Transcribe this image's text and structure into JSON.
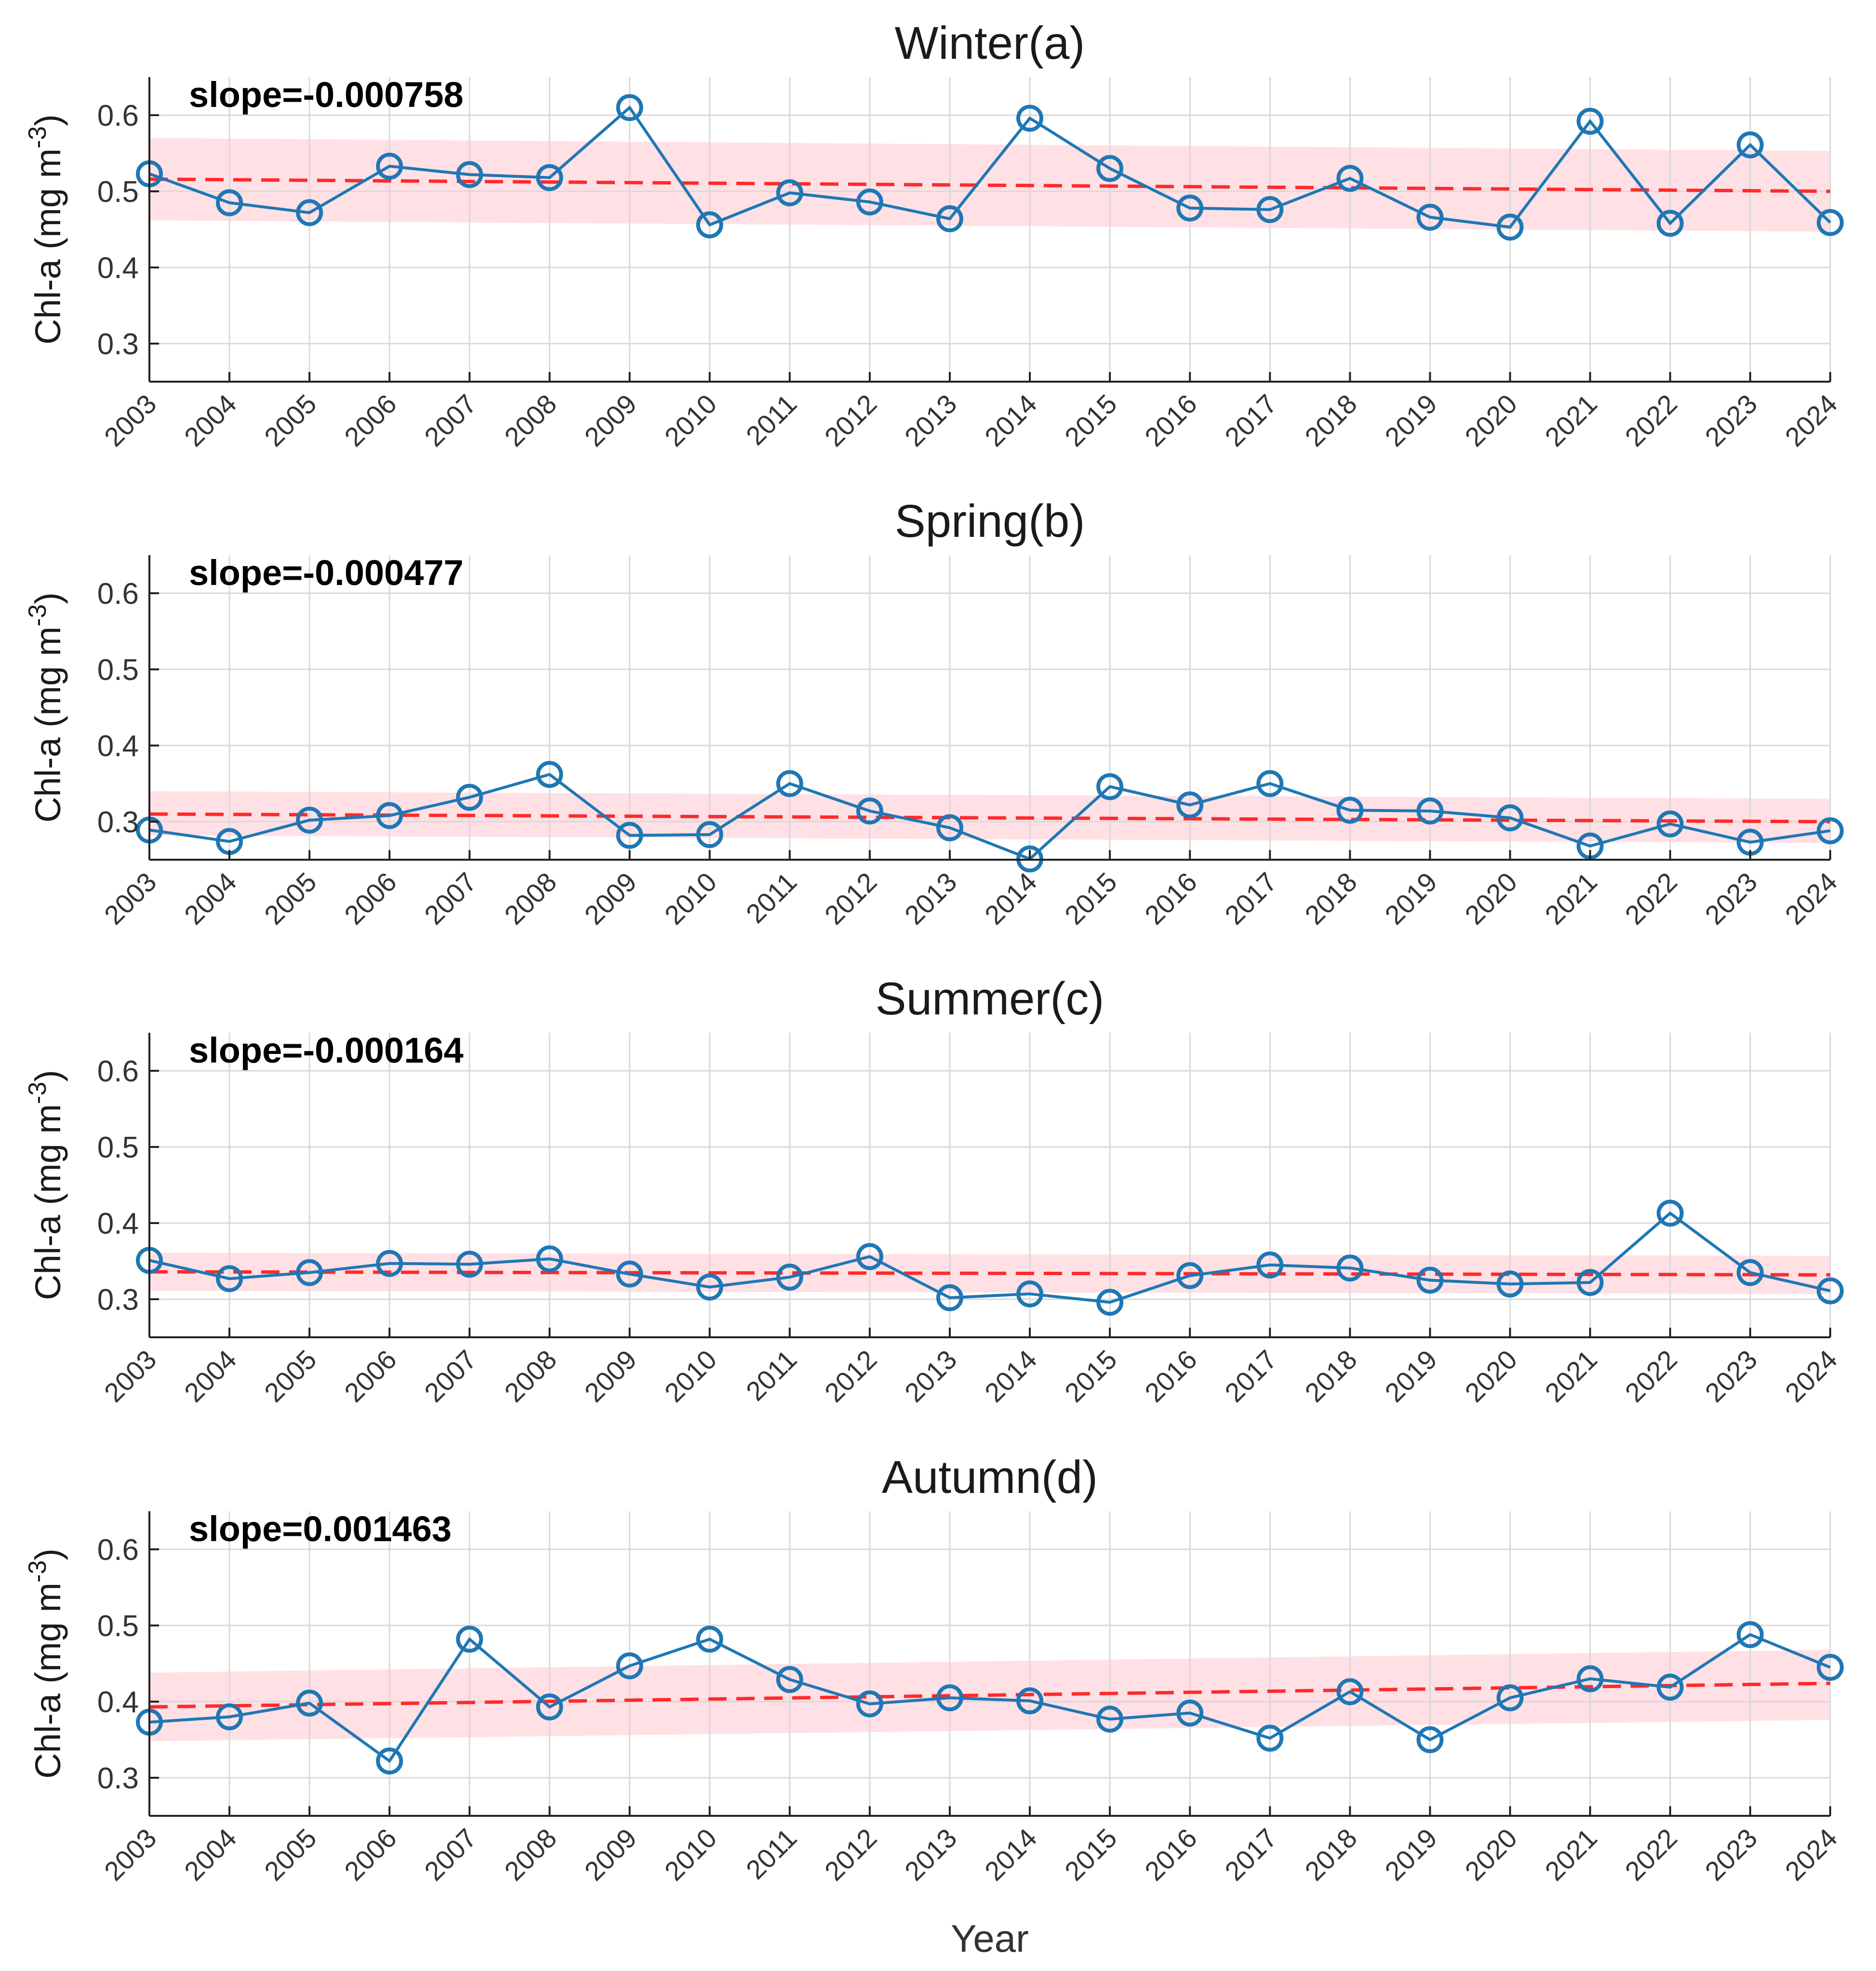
{
  "figure": {
    "xlabel": "Year"
  },
  "chart_data": [
    {
      "type": "line",
      "title": "Winter(a)",
      "annotation": "slope=-0.000758",
      "xlabel": "",
      "ylabel": "Chl-a (mg m",
      "ylabel_sup": "-3",
      "ylabel_close": ")",
      "categories": [
        "2003",
        "2004",
        "2005",
        "2006",
        "2007",
        "2008",
        "2009",
        "2010",
        "2011",
        "2012",
        "2013",
        "2014",
        "2015",
        "2016",
        "2017",
        "2018",
        "2019",
        "2020",
        "2021",
        "2022",
        "2023",
        "2024"
      ],
      "ylim": [
        0.25,
        0.65
      ],
      "yticks": [
        "0.3",
        "0.4",
        "0.5",
        "0.6"
      ],
      "ytick_values": [
        0.3,
        0.4,
        0.5,
        0.6
      ],
      "grid": true,
      "series": [
        {
          "name": "Chl-a",
          "color": "#1f77b4",
          "values": [
            0.523,
            0.485,
            0.472,
            0.533,
            0.522,
            0.518,
            0.61,
            0.456,
            0.498,
            0.486,
            0.464,
            0.596,
            0.53,
            0.478,
            0.476,
            0.517,
            0.466,
            0.453,
            0.592,
            0.458,
            0.561,
            0.459
          ]
        }
      ],
      "trend": {
        "color": "#ff2a2a",
        "start": 0.516,
        "end": 0.5
      },
      "band": {
        "color": "#ffd6dc",
        "start": [
          0.462,
          0.57
        ],
        "end": [
          0.447,
          0.553
        ]
      }
    },
    {
      "type": "line",
      "title": "Spring(b)",
      "annotation": "slope=-0.000477",
      "xlabel": "",
      "ylabel": "Chl-a (mg m",
      "ylabel_sup": "-3",
      "ylabel_close": ")",
      "categories": [
        "2003",
        "2004",
        "2005",
        "2006",
        "2007",
        "2008",
        "2009",
        "2010",
        "2011",
        "2012",
        "2013",
        "2014",
        "2015",
        "2016",
        "2017",
        "2018",
        "2019",
        "2020",
        "2021",
        "2022",
        "2023",
        "2024"
      ],
      "ylim": [
        0.25,
        0.65
      ],
      "yticks": [
        "0.3",
        "0.4",
        "0.5",
        "0.6"
      ],
      "ytick_values": [
        0.3,
        0.4,
        0.5,
        0.6
      ],
      "grid": true,
      "series": [
        {
          "name": "Chl-a",
          "color": "#1f77b4",
          "values": [
            0.289,
            0.274,
            0.302,
            0.308,
            0.332,
            0.362,
            0.282,
            0.283,
            0.35,
            0.314,
            0.292,
            0.251,
            0.346,
            0.322,
            0.35,
            0.315,
            0.314,
            0.305,
            0.268,
            0.297,
            0.273,
            0.288
          ]
        }
      ],
      "trend": {
        "color": "#ff2a2a",
        "start": 0.31,
        "end": 0.3
      },
      "band": {
        "color": "#ffd6dc",
        "start": [
          0.282,
          0.34
        ],
        "end": [
          0.272,
          0.33
        ]
      }
    },
    {
      "type": "line",
      "title": "Summer(c)",
      "annotation": "slope=-0.000164",
      "xlabel": "",
      "ylabel": "Chl-a (mg m",
      "ylabel_sup": "-3",
      "ylabel_close": ")",
      "categories": [
        "2003",
        "2004",
        "2005",
        "2006",
        "2007",
        "2008",
        "2009",
        "2010",
        "2011",
        "2012",
        "2013",
        "2014",
        "2015",
        "2016",
        "2017",
        "2018",
        "2019",
        "2020",
        "2021",
        "2022",
        "2023",
        "2024"
      ],
      "ylim": [
        0.25,
        0.65
      ],
      "yticks": [
        "0.3",
        "0.4",
        "0.5",
        "0.6"
      ],
      "ytick_values": [
        0.3,
        0.4,
        0.5,
        0.6
      ],
      "grid": true,
      "series": [
        {
          "name": "Chl-a",
          "color": "#1f77b4",
          "values": [
            0.351,
            0.327,
            0.335,
            0.347,
            0.346,
            0.353,
            0.333,
            0.316,
            0.329,
            0.356,
            0.302,
            0.307,
            0.296,
            0.331,
            0.345,
            0.341,
            0.325,
            0.32,
            0.322,
            0.413,
            0.335,
            0.311
          ]
        }
      ],
      "trend": {
        "color": "#ff2a2a",
        "start": 0.336,
        "end": 0.332
      },
      "band": {
        "color": "#ffd6dc",
        "start": [
          0.311,
          0.361
        ],
        "end": [
          0.307,
          0.357
        ]
      }
    },
    {
      "type": "line",
      "title": "Autumn(d)",
      "annotation": "slope=0.001463",
      "xlabel": "Year",
      "ylabel": "Chl-a (mg m",
      "ylabel_sup": "-3",
      "ylabel_close": ")",
      "categories": [
        "2003",
        "2004",
        "2005",
        "2006",
        "2007",
        "2008",
        "2009",
        "2010",
        "2011",
        "2012",
        "2013",
        "2014",
        "2015",
        "2016",
        "2017",
        "2018",
        "2019",
        "2020",
        "2021",
        "2022",
        "2023",
        "2024"
      ],
      "ylim": [
        0.25,
        0.65
      ],
      "yticks": [
        "0.3",
        "0.4",
        "0.5",
        "0.6"
      ],
      "ytick_values": [
        0.3,
        0.4,
        0.5,
        0.6
      ],
      "grid": true,
      "series": [
        {
          "name": "Chl-a",
          "color": "#1f77b4",
          "values": [
            0.373,
            0.38,
            0.398,
            0.322,
            0.482,
            0.393,
            0.447,
            0.482,
            0.429,
            0.397,
            0.405,
            0.401,
            0.377,
            0.385,
            0.352,
            0.413,
            0.35,
            0.405,
            0.43,
            0.419,
            0.488,
            0.445
          ]
        }
      ],
      "trend": {
        "color": "#ff2a2a",
        "start": 0.393,
        "end": 0.424
      },
      "band": {
        "color": "#ffd6dc",
        "start": [
          0.348,
          0.438
        ],
        "end": [
          0.376,
          0.468
        ]
      }
    }
  ]
}
